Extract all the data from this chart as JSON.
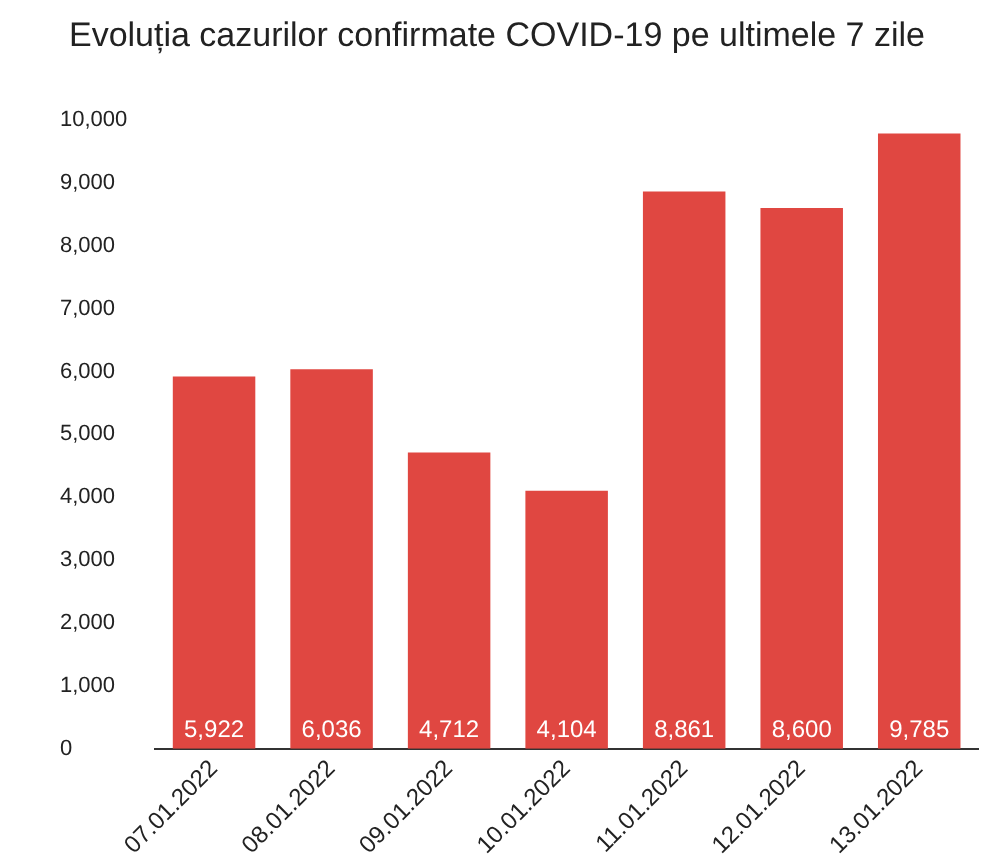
{
  "chart_data": {
    "type": "bar",
    "title": "Evoluția cazurilor confirmate COVID-19 pe ultimele 7 zile",
    "categories": [
      "07.01.2022",
      "08.01.2022",
      "09.01.2022",
      "10.01.2022",
      "11.01.2022",
      "12.01.2022",
      "13.01.2022"
    ],
    "values": [
      5922,
      6036,
      4712,
      4104,
      8861,
      8600,
      9785
    ],
    "color": "#e04741",
    "ylim": [
      0,
      10000
    ],
    "yticks": [
      {
        "value": 0,
        "label": "0"
      },
      {
        "value": 1000,
        "label": "1,000"
      },
      {
        "value": 2000,
        "label": "2,000"
      },
      {
        "value": 3000,
        "label": "3,000"
      },
      {
        "value": 4000,
        "label": "4,000"
      },
      {
        "value": 5000,
        "label": "5,000"
      },
      {
        "value": 6000,
        "label": "6,000"
      },
      {
        "value": 7000,
        "label": "7,000"
      },
      {
        "value": 8000,
        "label": "8,000"
      },
      {
        "value": 9000,
        "label": "9,000"
      },
      {
        "value": 10000,
        "label": "10,000"
      }
    ],
    "value_labels": [
      "5,922",
      "6,036",
      "4,712",
      "4,104",
      "8,861",
      "8,600",
      "9,785"
    ],
    "grid": false,
    "legend": false
  }
}
